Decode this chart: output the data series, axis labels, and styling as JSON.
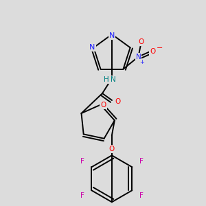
{
  "bg": "#dcdcdc",
  "colors": {
    "bond": "#000000",
    "N": "#1a1aff",
    "O": "#ff0000",
    "F": "#cc00aa",
    "NH": "#008080",
    "bg": "#dcdcdc"
  }
}
